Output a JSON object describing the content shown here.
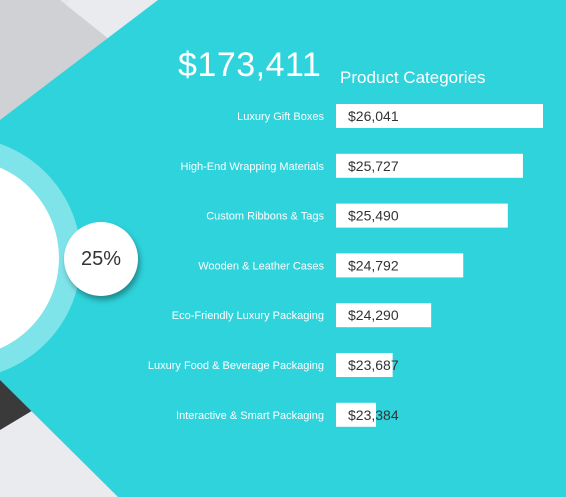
{
  "total": "$173,411",
  "percent_badge": "25%",
  "colors": {
    "teal": "#2fd3dc",
    "light_gray": "#e9ebef",
    "mid_gray": "#c9cbcf",
    "dark_gray": "#3a3a3a",
    "ring": "#7fe4ea",
    "bar": "#ffffff",
    "value_text": "#333333",
    "label_text": "#ffffff"
  },
  "chart_data": {
    "type": "bar",
    "orientation": "horizontal",
    "title": "Product Categories",
    "categories": [
      "Luxury Gift Boxes",
      "High-End Wrapping Materials",
      "Custom Ribbons & Tags",
      "Wooden & Leather Cases",
      "Eco-Friendly Luxury Packaging",
      "Luxury Food & Beverage Packaging",
      "Interactive & Smart Packaging"
    ],
    "values": [
      26041,
      25727,
      25490,
      24792,
      24290,
      23687,
      23384
    ],
    "value_labels": [
      "$26,041",
      "$25,727",
      "$25,490",
      "$24,792",
      "$24,290",
      "$23,687",
      "$23,384"
    ],
    "xlim": [
      22800,
      26041
    ],
    "grid": false,
    "legend": "none"
  }
}
